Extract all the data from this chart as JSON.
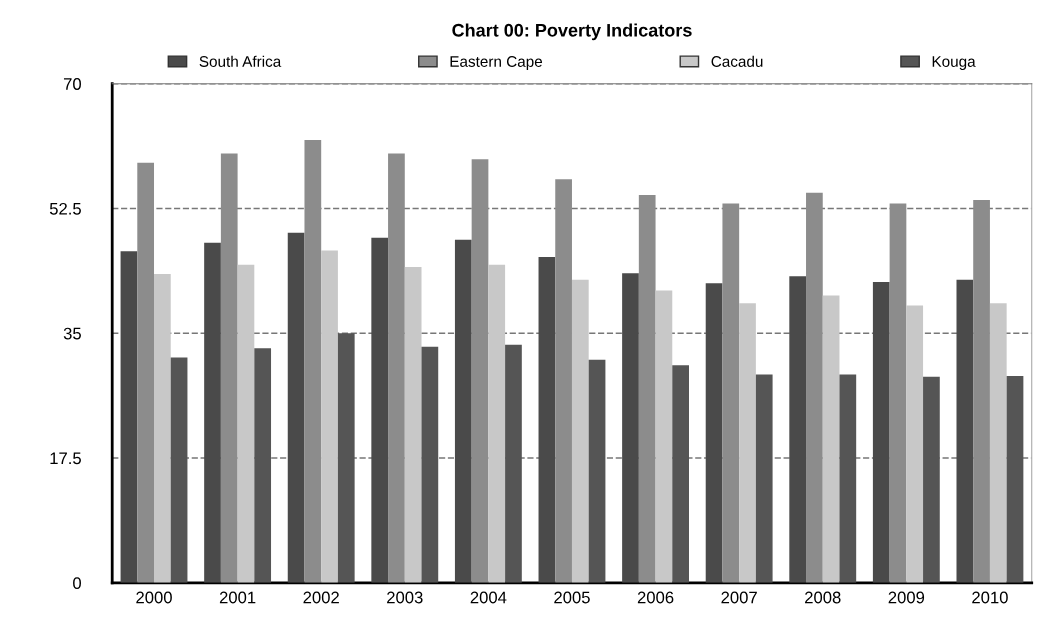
{
  "chart_data": {
    "type": "bar",
    "title": "Chart 00: Poverty Indicators",
    "categories": [
      "2000",
      "2001",
      "2002",
      "2003",
      "2004",
      "2005",
      "2006",
      "2007",
      "2008",
      "2009",
      "2010"
    ],
    "series": [
      {
        "name": "South Africa",
        "color": "#4a4a4a",
        "values": [
          46.5,
          47.7,
          49.1,
          48.4,
          48.1,
          45.7,
          43.4,
          42.0,
          43.0,
          42.2,
          42.5
        ]
      },
      {
        "name": "Eastern Cape",
        "color": "#8c8c8c",
        "values": [
          58.9,
          60.2,
          62.1,
          60.2,
          59.4,
          56.6,
          54.4,
          53.2,
          54.7,
          53.2,
          53.7
        ]
      },
      {
        "name": "Cacadu",
        "color": "#c8c8c8",
        "values": [
          43.3,
          44.6,
          46.6,
          44.3,
          44.6,
          42.5,
          41.0,
          39.2,
          40.3,
          38.9,
          39.2
        ]
      },
      {
        "name": "Kouga",
        "color": "#555555",
        "values": [
          31.6,
          32.9,
          35.0,
          33.1,
          33.4,
          31.3,
          30.5,
          29.2,
          29.2,
          28.9,
          29.0
        ]
      }
    ],
    "ylim": [
      0,
      70
    ],
    "yticks": [
      0,
      17.5,
      35,
      52.5,
      70
    ],
    "grid": "y",
    "legend": "top"
  }
}
